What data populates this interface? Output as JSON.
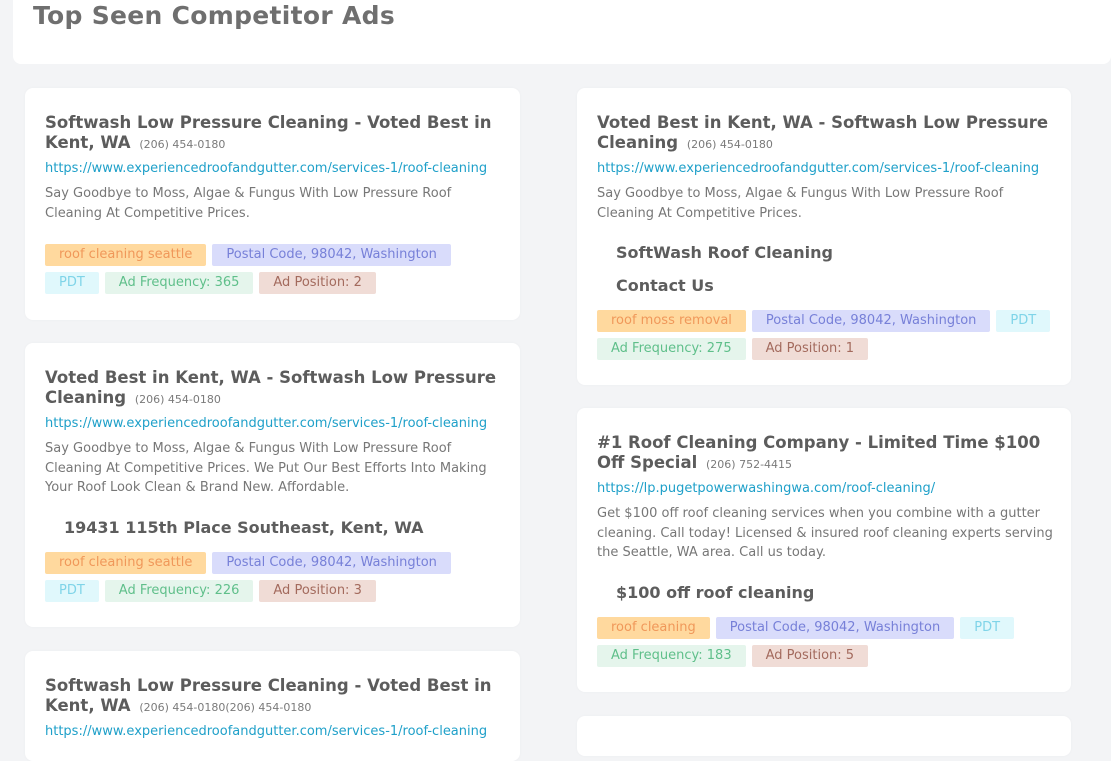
{
  "page": {
    "title": "Top Seen Competitor Ads"
  },
  "ads": [
    {
      "title": "Softwash Low Pressure Cleaning - Voted Best in Kent, WA",
      "phone": "(206) 454-0180",
      "url": "https://www.experiencedroofandgutter.com/services-1/roof-cleaning",
      "description": "Say Goodbye to Moss, Algae & Fungus With Low Pressure Roof Cleaning At Competitive Prices.",
      "sitelinks": [],
      "keyword": "roof cleaning seattle",
      "postal": "Postal Code, 98042, Washington",
      "timezone": "PDT",
      "frequency": "Ad Frequency: 365",
      "position": "Ad Position: 2"
    },
    {
      "title": "Voted Best in Kent, WA - Softwash Low Pressure Cleaning",
      "phone": "(206) 454-0180",
      "url": "https://www.experiencedroofandgutter.com/services-1/roof-cleaning",
      "description": "Say Goodbye to Moss, Algae & Fungus With Low Pressure Roof Cleaning At Competitive Prices.",
      "sitelinks": [
        "SoftWash Roof Cleaning",
        "Contact Us"
      ],
      "keyword": "roof moss removal",
      "postal": "Postal Code, 98042, Washington",
      "timezone": "PDT",
      "frequency": "Ad Frequency: 275",
      "position": "Ad Position: 1"
    },
    {
      "title": "Voted Best in Kent, WA - Softwash Low Pressure Cleaning",
      "phone": "(206) 454-0180",
      "url": "https://www.experiencedroofandgutter.com/services-1/roof-cleaning",
      "description": "Say Goodbye to Moss, Algae & Fungus With Low Pressure Roof Cleaning At Competitive Prices. We Put Our Best Efforts Into Making Your Roof Look Clean & Brand New. Affordable.",
      "sitelinks": [
        "19431 115th Place Southeast, Kent, WA"
      ],
      "keyword": "roof cleaning seattle",
      "postal": "Postal Code, 98042, Washington",
      "timezone": "PDT",
      "frequency": "Ad Frequency: 226",
      "position": "Ad Position: 3"
    },
    {
      "title": "#1 Roof Cleaning Company - Limited Time $100 Off Special",
      "phone": "(206) 752-4415",
      "url": "https://lp.pugetpowerwashingwa.com/roof-cleaning/",
      "description": "Get $100 off roof cleaning services when you combine with a gutter cleaning. Call today! Licensed & insured roof cleaning experts serving the Seattle, WA area. Call us today.",
      "sitelinks": [
        "$100 off roof cleaning"
      ],
      "keyword": "roof cleaning",
      "postal": "Postal Code, 98042, Washington",
      "timezone": "PDT",
      "frequency": "Ad Frequency: 183",
      "position": "Ad Position: 5"
    },
    {
      "title": "Softwash Low Pressure Cleaning - Voted Best in Kent, WA",
      "phone": "(206) 454-0180(206) 454-0180",
      "url": "https://www.experiencedroofandgutter.com/services-1/roof-cleaning"
    }
  ]
}
